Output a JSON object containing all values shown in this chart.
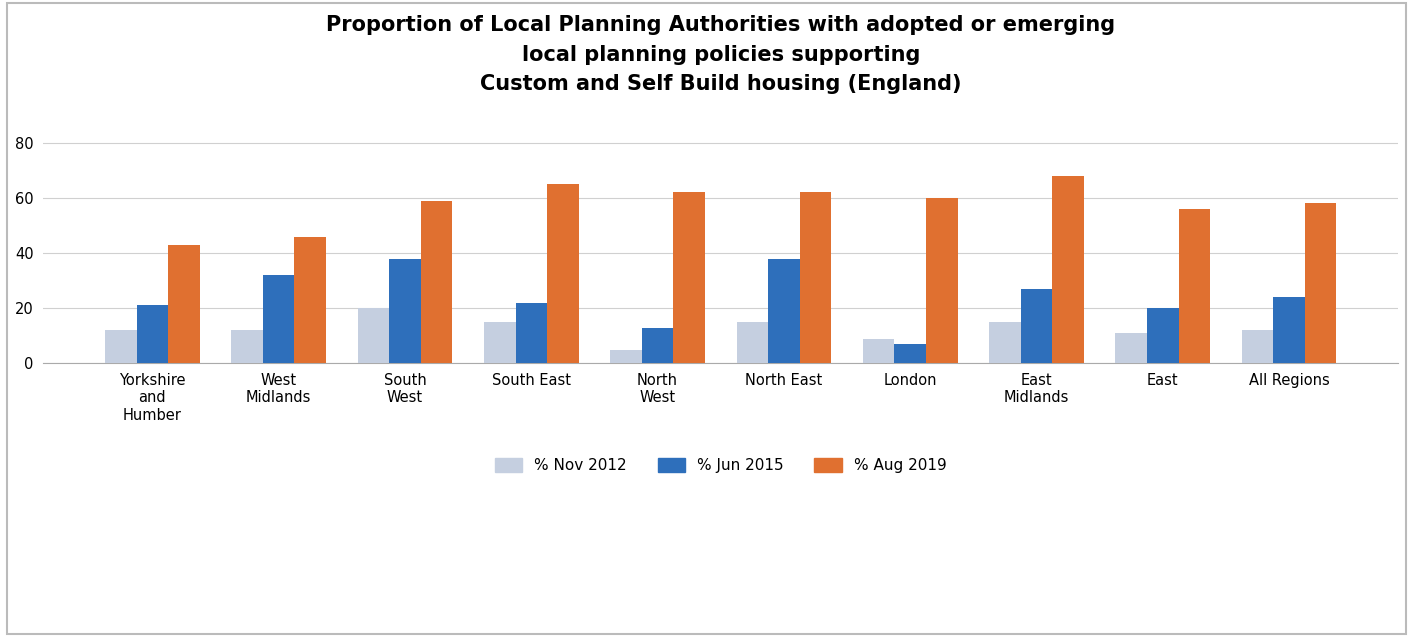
{
  "title": "Proportion of Local Planning Authorities with adopted or emerging\nlocal planning policies supporting\nCustom and Self Build housing (England)",
  "categories": [
    "Yorkshire\nand\nHumber",
    "West\nMidlands",
    "South\nWest",
    "South East",
    "North\nWest",
    "North East",
    "London",
    "East\nMidlands",
    "East",
    "All Regions"
  ],
  "series": {
    "% Nov 2012": [
      12,
      12,
      20,
      15,
      5,
      15,
      9,
      15,
      11,
      12
    ],
    "% Jun 2015": [
      21,
      32,
      38,
      22,
      13,
      38,
      7,
      27,
      20,
      24
    ],
    "% Aug 2019": [
      43,
      46,
      59,
      65,
      62,
      62,
      60,
      68,
      56,
      58
    ]
  },
  "colors": {
    "% Nov 2012": "#c5cfe0",
    "% Jun 2015": "#2e6fbb",
    "% Aug 2019": "#e07030"
  },
  "ylim": [
    0,
    90
  ],
  "yticks": [
    0,
    20,
    40,
    60,
    80
  ],
  "bar_width": 0.25,
  "background_color": "#ffffff",
  "title_fontsize": 15,
  "tick_fontsize": 10.5,
  "legend_fontsize": 11,
  "border_color": "#bbbbbb"
}
